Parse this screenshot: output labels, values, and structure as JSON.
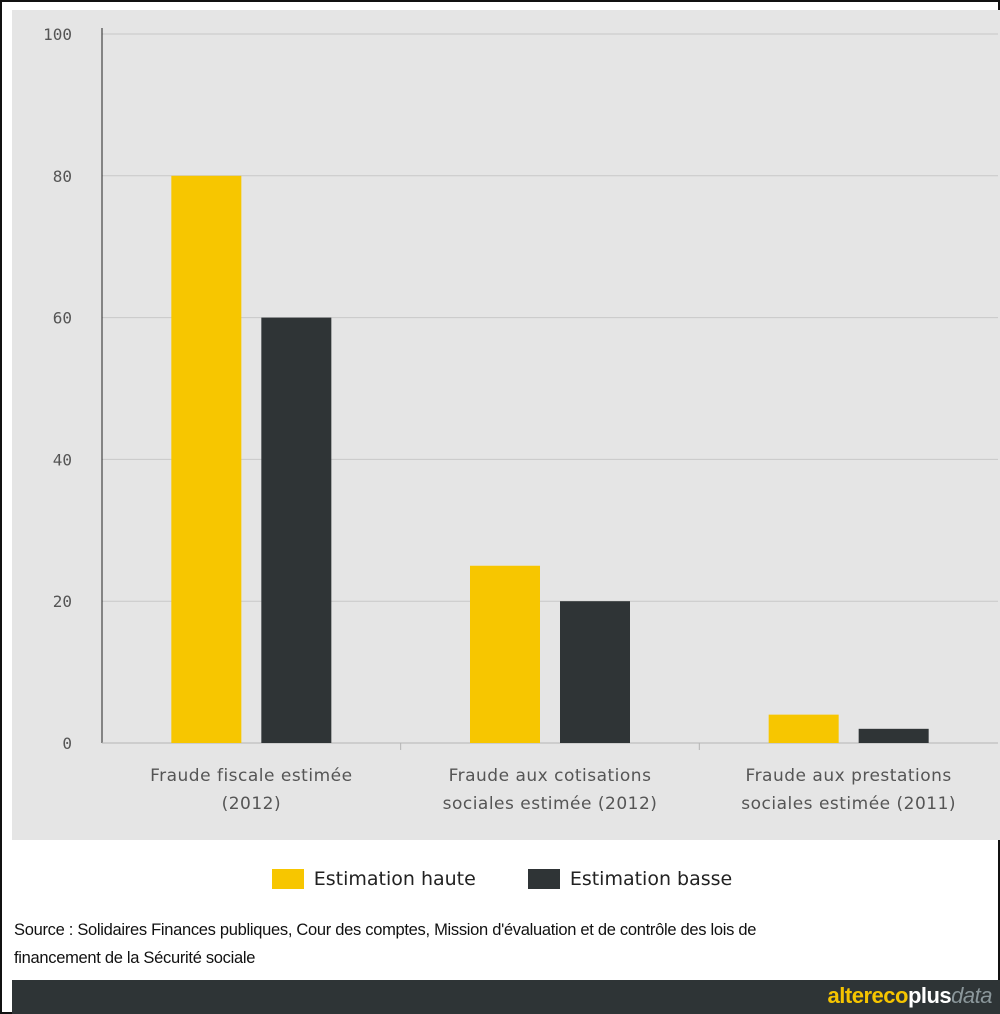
{
  "chart_data": {
    "type": "bar",
    "categories": [
      [
        "Fraude fiscale estimée",
        "(2012)"
      ],
      [
        "Fraude aux cotisations",
        "sociales estimée (2012)"
      ],
      [
        "Fraude aux prestations",
        "sociales estimée (2011)"
      ]
    ],
    "series": [
      {
        "name": "Estimation haute",
        "color": "#f7c600",
        "values": [
          80,
          25,
          4
        ]
      },
      {
        "name": "Estimation basse",
        "color": "#2f3436",
        "values": [
          60,
          20,
          2
        ]
      }
    ],
    "ylim": [
      0,
      100
    ],
    "yticks": [
      0,
      20,
      40,
      60,
      80,
      100
    ],
    "grid": true,
    "legend_position": "bottom-center",
    "title": "",
    "xlabel": "",
    "ylabel": ""
  },
  "legend": {
    "high": "Estimation haute",
    "low": "Estimation basse"
  },
  "source": {
    "line1": "Source : Solidaires Finances publiques, Cour des comptes, Mission d'évaluation et de contrôle des lois de",
    "line2": "financement de la Sécurité sociale"
  },
  "brand": {
    "part1": "altereco",
    "part2": "plus",
    "part3": "data"
  },
  "colors": {
    "background": "#e5e5e5",
    "grid": "#c8c8c8",
    "footer": "#2e3436"
  }
}
